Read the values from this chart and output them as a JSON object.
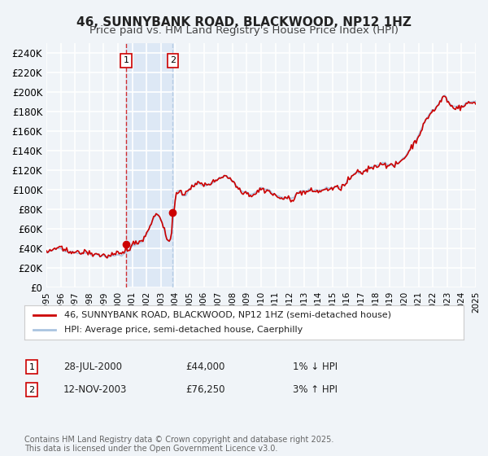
{
  "title": "46, SUNNYBANK ROAD, BLACKWOOD, NP12 1HZ",
  "subtitle": "Price paid vs. HM Land Registry's House Price Index (HPI)",
  "legend_entry1": "46, SUNNYBANK ROAD, BLACKWOOD, NP12 1HZ (semi-detached house)",
  "legend_entry2": "HPI: Average price, semi-detached house, Caerphilly",
  "ylabel": "",
  "ylim": [
    0,
    250000
  ],
  "yticks": [
    0,
    20000,
    40000,
    60000,
    80000,
    100000,
    120000,
    140000,
    160000,
    180000,
    200000,
    220000,
    240000
  ],
  "ytick_labels": [
    "£0",
    "£20K",
    "£40K",
    "£60K",
    "£80K",
    "£100K",
    "£120K",
    "£140K",
    "£160K",
    "£180K",
    "£200K",
    "£220K",
    "£240K"
  ],
  "background_color": "#f0f4f8",
  "plot_bg_color": "#f0f4f8",
  "grid_color": "#ffffff",
  "line_color_hpi": "#aac4e0",
  "line_color_price": "#cc0000",
  "sale1_date": "2000-07-28",
  "sale1_price": 44000,
  "sale1_label": "1",
  "sale2_date": "2003-11-12",
  "sale2_price": 76250,
  "sale2_label": "2",
  "shade_color": "#dde8f5",
  "table_row1": [
    "1",
    "28-JUL-2000",
    "£44,000",
    "1% ↓ HPI"
  ],
  "table_row2": [
    "2",
    "12-NOV-2003",
    "£76,250",
    "3% ↑ HPI"
  ],
  "footer": "Contains HM Land Registry data © Crown copyright and database right 2025.\nThis data is licensed under the Open Government Licence v3.0.",
  "title_fontsize": 11,
  "subtitle_fontsize": 9.5,
  "tick_fontsize": 8.5,
  "legend_fontsize": 8,
  "table_fontsize": 8.5,
  "footer_fontsize": 7
}
